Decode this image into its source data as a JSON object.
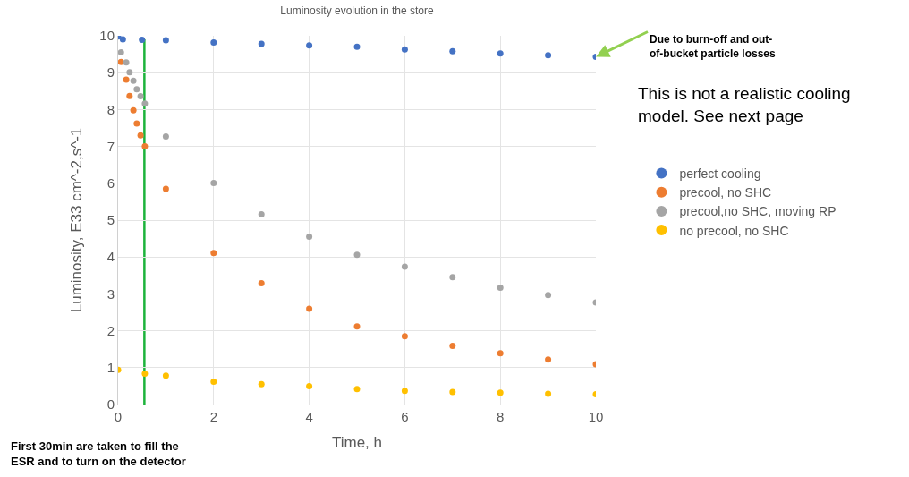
{
  "chart_data": {
    "type": "scatter",
    "title": "Luminosity evolution in the store",
    "xlabel": "Time, h",
    "ylabel": "Luminosity, E33 cm^-2,s^-1",
    "xlim": [
      0,
      10
    ],
    "xticks": [
      0,
      2,
      4,
      6,
      8,
      10
    ],
    "ylim": [
      0,
      10
    ],
    "yticks": [
      0,
      1,
      2,
      3,
      4,
      5,
      6,
      7,
      8,
      9,
      10
    ],
    "grid": true,
    "legend": "right",
    "marker": "circle",
    "series": [
      {
        "name": "perfect cooling",
        "color": "#4472c4",
        "x": [
          0,
          0.1,
          0.5,
          1,
          2,
          3,
          4,
          5,
          6,
          7,
          8,
          9,
          10
        ],
        "values": [
          9.98,
          9.9,
          9.89,
          9.88,
          9.82,
          9.78,
          9.74,
          9.7,
          9.63,
          9.58,
          9.52,
          9.47,
          9.43
        ]
      },
      {
        "name": "precool, no SHC",
        "color": "#ed7d31",
        "x": [
          0.06,
          0.17,
          0.24,
          0.32,
          0.39,
          0.47,
          0.56,
          1,
          2,
          3,
          4,
          5,
          6,
          7,
          8,
          9,
          10
        ],
        "values": [
          9.29,
          8.81,
          8.37,
          7.98,
          7.62,
          7.3,
          7.0,
          5.85,
          4.11,
          3.29,
          2.6,
          2.12,
          1.85,
          1.59,
          1.39,
          1.22,
          1.09
        ]
      },
      {
        "name": "precool,no SHC, moving RP",
        "color": "#a5a5a5",
        "x": [
          0.06,
          0.17,
          0.24,
          0.32,
          0.39,
          0.47,
          0.56,
          1,
          2,
          3,
          4,
          5,
          6,
          7,
          8,
          9,
          10
        ],
        "values": [
          9.55,
          9.28,
          9.01,
          8.78,
          8.55,
          8.36,
          8.16,
          7.27,
          6.01,
          5.16,
          4.55,
          4.06,
          3.74,
          3.45,
          3.17,
          2.97,
          2.77
        ]
      },
      {
        "name": "no precool, no SHC",
        "color": "#ffc000",
        "x": [
          0,
          0.56,
          1,
          2,
          3,
          4,
          5,
          6,
          7,
          8,
          9,
          10
        ],
        "values": [
          0.94,
          0.84,
          0.78,
          0.62,
          0.55,
          0.5,
          0.42,
          0.37,
          0.34,
          0.32,
          0.29,
          0.28
        ]
      }
    ],
    "ref_lines": [
      {
        "axis": "x",
        "value": 0.55,
        "color": "#1db33b"
      }
    ],
    "annotations": [
      {
        "text": "Due to burn-off and out-\nof-bucket particle losses",
        "x": 10,
        "y": 9.43
      },
      "This is not a realistic cooling\nmodel. See next page",
      "First 30min are taken to fill the\nESR and to turn on the detector"
    ]
  }
}
